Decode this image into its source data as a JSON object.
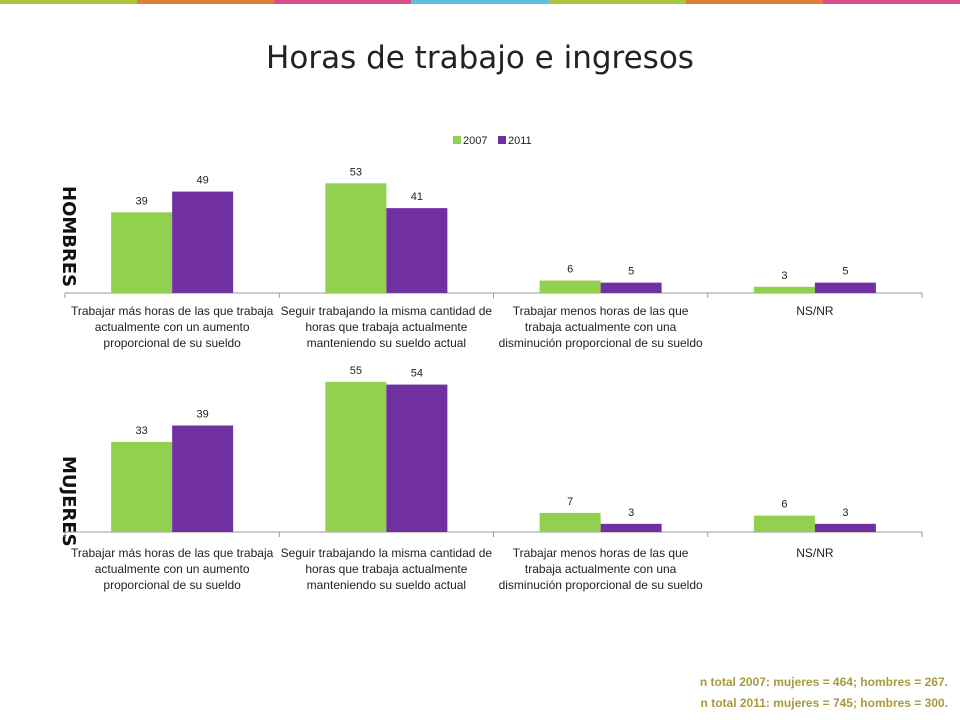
{
  "title": "Horas de trabajo e ingresos",
  "topbar_colors": [
    "#a8c83a",
    "#e07b39",
    "#d64f8b",
    "#5bc0de",
    "#a8c83a",
    "#e07b39",
    "#d64f8b"
  ],
  "colors": {
    "s2007": "#92d050",
    "s2011": "#7030a0"
  },
  "legend": [
    "2007",
    "2011"
  ],
  "panels": [
    {
      "label": "HOMBRES"
    },
    {
      "label": "MUJERES"
    }
  ],
  "categories": [
    "Trabajar más horas de las que trabaja actualmente con un aumento proporcional de su sueldo",
    "Seguir trabajando la misma cantidad de horas que trabaja actualmente manteniendo su sueldo actual",
    "Trabajar menos horas de las que trabaja actualmente con una disminución proporcional de su sueldo",
    "NS/NR"
  ],
  "chart_data": [
    {
      "type": "bar",
      "title": "HOMBRES",
      "categories": [
        "Trabajar más horas de las que trabaja actualmente con un aumento proporcional de su sueldo",
        "Seguir trabajando la misma cantidad de horas que trabaja actualmente manteniendo su sueldo actual",
        "Trabajar menos horas de las que trabaja actualmente con una disminución proporcional de su sueldo",
        "NS/NR"
      ],
      "series": [
        {
          "name": "2007",
          "values": [
            39,
            53,
            6,
            3
          ]
        },
        {
          "name": "2011",
          "values": [
            49,
            41,
            5,
            5
          ]
        }
      ],
      "legend_position": "top",
      "grid": false
    },
    {
      "type": "bar",
      "title": "MUJERES",
      "categories": [
        "Trabajar más horas de las que trabaja actualmente con un aumento proporcional de su sueldo",
        "Seguir trabajando la misma cantidad de horas que trabaja actualmente manteniendo su sueldo actual",
        "Trabajar menos horas de las que trabaja actualmente con una disminución proporcional de su sueldo",
        "NS/NR"
      ],
      "series": [
        {
          "name": "2007",
          "values": [
            33,
            55,
            7,
            6
          ]
        },
        {
          "name": "2011",
          "values": [
            39,
            54,
            3,
            3
          ]
        }
      ],
      "grid": false
    }
  ],
  "footnote": [
    "n total 2007: mujeres = 464; hombres = 267.",
    "n total 2011: mujeres = 745; hombres = 300."
  ]
}
